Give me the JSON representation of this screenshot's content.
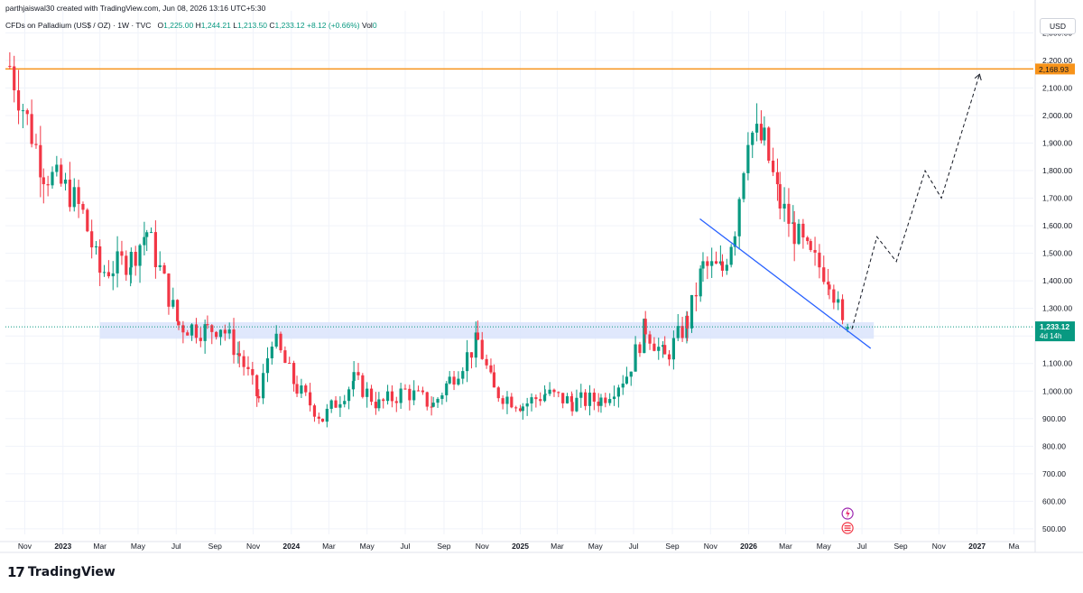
{
  "header": {
    "creator": "parthjaiswal30 created with TradingView.com, Jun 08, 2026 13:16 UTC+5:30",
    "symbol": "CFDs on Palladium (US$ / OZ) · 1W · TVC",
    "o_label": "O",
    "o_value": "1,225.00",
    "h_label": "H",
    "h_value": "1,244.21",
    "l_label": "L",
    "l_value": "1,213.50",
    "c_label": "C",
    "c_value": "1,233.12",
    "change": "+8.12 (+0.66%)",
    "vol_label": "Vol",
    "vol_value": "0"
  },
  "currency": "USD",
  "brand": {
    "mark": "17",
    "name": "TradingView"
  },
  "colors": {
    "up": "#089981",
    "down": "#f23645",
    "resistance": "#f7931a",
    "trendline": "#2962ff",
    "zone": "#dbe4fc",
    "grid": "#f0f3fa",
    "axis_text": "#131722",
    "price_tag": "#089981"
  },
  "chart_data": {
    "type": "candlestick",
    "title": "CFDs on Palladium (US$ / OZ) · 1W · TVC",
    "timeframe": "1W",
    "y_axis": {
      "range": [
        480,
        2380
      ],
      "ticks": [
        500,
        600,
        700,
        800,
        900,
        1000,
        1100,
        1200,
        1300,
        1400,
        1500,
        1600,
        1700,
        1800,
        1900,
        2000,
        2100,
        2200,
        2300
      ],
      "tick_labels": [
        "500.00",
        "600.00",
        "700.00",
        "800.00",
        "900.00",
        "1,000.00",
        "1,100.00",
        "1,200.00",
        "1,300.00",
        "1,400.00",
        "1,500.00",
        "1,600.00",
        "1,700.00",
        "1,800.00",
        "1,900.00",
        "2,000.00",
        "2,100.00",
        "2,200.00",
        "2,300.00"
      ]
    },
    "x_axis": {
      "range": [
        "2022-10-01",
        "2027-04-01"
      ],
      "ticks": [
        {
          "date": "2022-11-01",
          "label": "Nov",
          "bold": false
        },
        {
          "date": "2023-01-01",
          "label": "2023",
          "bold": true
        },
        {
          "date": "2023-03-01",
          "label": "Mar",
          "bold": false
        },
        {
          "date": "2023-05-01",
          "label": "May",
          "bold": false
        },
        {
          "date": "2023-07-01",
          "label": "Jul",
          "bold": false
        },
        {
          "date": "2023-09-01",
          "label": "Sep",
          "bold": false
        },
        {
          "date": "2023-11-01",
          "label": "Nov",
          "bold": false
        },
        {
          "date": "2024-01-01",
          "label": "2024",
          "bold": true
        },
        {
          "date": "2024-03-01",
          "label": "Mar",
          "bold": false
        },
        {
          "date": "2024-05-01",
          "label": "May",
          "bold": false
        },
        {
          "date": "2024-07-01",
          "label": "Jul",
          "bold": false
        },
        {
          "date": "2024-09-01",
          "label": "Sep",
          "bold": false
        },
        {
          "date": "2024-11-01",
          "label": "Nov",
          "bold": false
        },
        {
          "date": "2025-01-01",
          "label": "2025",
          "bold": true
        },
        {
          "date": "2025-03-01",
          "label": "Mar",
          "bold": false
        },
        {
          "date": "2025-05-01",
          "label": "May",
          "bold": false
        },
        {
          "date": "2025-07-01",
          "label": "Jul",
          "bold": false
        },
        {
          "date": "2025-09-01",
          "label": "Sep",
          "bold": false
        },
        {
          "date": "2025-11-01",
          "label": "Nov",
          "bold": false
        },
        {
          "date": "2026-01-01",
          "label": "2026",
          "bold": true
        },
        {
          "date": "2026-03-01",
          "label": "Mar",
          "bold": false
        },
        {
          "date": "2026-05-01",
          "label": "May",
          "bold": false
        },
        {
          "date": "2026-07-01",
          "label": "Jul",
          "bold": false
        },
        {
          "date": "2026-09-01",
          "label": "Sep",
          "bold": false
        },
        {
          "date": "2026-11-01",
          "label": "Nov",
          "bold": false
        },
        {
          "date": "2027-01-01",
          "label": "2027",
          "bold": true
        },
        {
          "date": "2027-03-01",
          "label": "Ma",
          "bold": false
        }
      ]
    },
    "candles_segment_anchors": [
      [
        "2022-10-08",
        2180
      ],
      [
        "2022-12-01",
        1800
      ],
      [
        "2023-01-12",
        1720
      ],
      [
        "2023-02-02",
        1640
      ],
      [
        "2023-03-01",
        1430
      ],
      [
        "2023-04-20",
        1480
      ],
      [
        "2023-05-15",
        1580
      ],
      [
        "2023-07-05",
        1240
      ],
      [
        "2023-08-20",
        1220
      ],
      [
        "2023-09-10",
        1240
      ],
      [
        "2023-10-10",
        1130
      ],
      [
        "2023-11-10",
        970
      ],
      [
        "2023-12-01",
        1200
      ],
      [
        "2024-01-10",
        1010
      ],
      [
        "2024-02-20",
        900
      ],
      [
        "2024-04-10",
        1040
      ],
      [
        "2024-05-20",
        950
      ],
      [
        "2024-07-01",
        1000
      ],
      [
        "2024-08-15",
        950
      ],
      [
        "2024-09-10",
        1040
      ],
      [
        "2024-10-25",
        1180
      ],
      [
        "2024-11-20",
        1000
      ],
      [
        "2025-01-05",
        950
      ],
      [
        "2025-02-10",
        990
      ],
      [
        "2025-03-25",
        960
      ],
      [
        "2025-05-10",
        970
      ],
      [
        "2025-06-20",
        1060
      ],
      [
        "2025-07-20",
        1230
      ],
      [
        "2025-08-20",
        1120
      ],
      [
        "2025-09-25",
        1250
      ],
      [
        "2025-10-20",
        1450
      ],
      [
        "2025-11-20",
        1440
      ],
      [
        "2025-12-10",
        1600
      ],
      [
        "2025-12-31",
        1950
      ],
      [
        "2026-01-26",
        1900
      ],
      [
        "2026-02-20",
        1680
      ],
      [
        "2026-03-15",
        1580
      ],
      [
        "2026-04-10",
        1480
      ],
      [
        "2026-05-10",
        1420
      ],
      [
        "2026-06-01",
        1225
      ]
    ],
    "last_candle": {
      "date": "2026-06-08",
      "open": 1225.0,
      "high": 1244.21,
      "low": 1213.5,
      "close": 1233.12
    },
    "resistance_line": {
      "price": 2168.93,
      "label": "2,168.93"
    },
    "support_zone": {
      "from_date": "2023-03-01",
      "to_date": "2026-07-20",
      "low": 1190,
      "high": 1250
    },
    "trendline": [
      {
        "date": "2025-10-15",
        "price": 1625
      },
      {
        "date": "2026-07-15",
        "price": 1155
      }
    ],
    "projection_path": [
      {
        "date": "2026-06-15",
        "price": 1225
      },
      {
        "date": "2026-07-25",
        "price": 1560
      },
      {
        "date": "2026-08-25",
        "price": 1470
      },
      {
        "date": "2026-10-10",
        "price": 1800
      },
      {
        "date": "2026-11-05",
        "price": 1700
      },
      {
        "date": "2027-01-05",
        "price": 2150
      }
    ],
    "current_price_label": "1,233.12",
    "countdown_label": "4d 14h"
  }
}
